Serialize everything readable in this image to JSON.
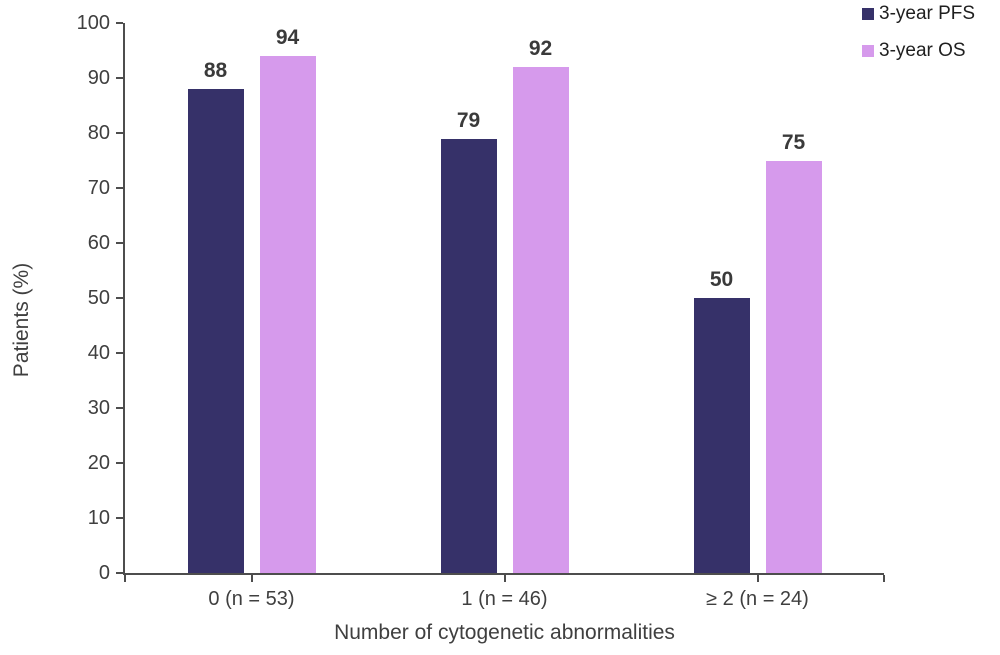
{
  "chart_data": {
    "type": "bar",
    "title": "",
    "xlabel": "Number of cytogenetic abnormalities",
    "ylabel": "Patients (%)",
    "categories": [
      "0 (n = 53)",
      "1 (n = 46)",
      "≥ 2 (n = 24)"
    ],
    "series": [
      {
        "name": "3-year PFS",
        "color": "#363169",
        "values": [
          88,
          79,
          50
        ]
      },
      {
        "name": "3-year OS",
        "color": "#D69AEC",
        "values": [
          94,
          92,
          75
        ]
      }
    ],
    "ylim": [
      0,
      100
    ],
    "ytick_step": 10,
    "grid": false,
    "legend_position": "top-right",
    "value_labels": true
  }
}
